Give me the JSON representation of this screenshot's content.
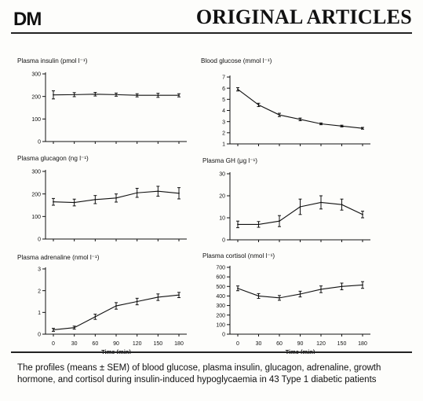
{
  "header": {
    "logo": "DM",
    "section_title": "ORIGINAL ARTICLES"
  },
  "caption": "The profiles (means ± SEM) of blood glucose, plasma insulin, glucagon, adrenaline, growth hormone, and cortisol during insulin-induced hypoglycaemia in 43 Type 1 diabetic patients",
  "chart_data": [
    {
      "type": "line",
      "title": "Plasma insulin (pmol l⁻¹)",
      "xlabel": "",
      "x": [
        0,
        30,
        60,
        90,
        120,
        150,
        180
      ],
      "ylim": [
        0,
        300
      ],
      "yticks": [
        0,
        100,
        200,
        300
      ],
      "series": [
        {
          "values": [
            207,
            208,
            210,
            208,
            205,
            205,
            205
          ],
          "sem": [
            18,
            9,
            8,
            7,
            7,
            9,
            7
          ]
        }
      ]
    },
    {
      "type": "line",
      "title": "Blood glucose (mmol l⁻¹)",
      "xlabel": "",
      "x": [
        0,
        30,
        60,
        90,
        120,
        150,
        180
      ],
      "ylim": [
        1,
        7
      ],
      "yticks": [
        1,
        2,
        3,
        4,
        5,
        6,
        7
      ],
      "series": [
        {
          "values": [
            5.9,
            4.5,
            3.6,
            3.2,
            2.8,
            2.6,
            2.4
          ],
          "sem": [
            0.15,
            0.15,
            0.15,
            0.12,
            0.08,
            0.08,
            0.08
          ]
        }
      ]
    },
    {
      "type": "line",
      "title": "Plasma glucagon (ng l⁻¹)",
      "xlabel": "",
      "x": [
        0,
        30,
        60,
        90,
        120,
        150,
        180
      ],
      "ylim": [
        0,
        300
      ],
      "yticks": [
        0,
        100,
        200,
        300
      ],
      "series": [
        {
          "values": [
            165,
            162,
            175,
            182,
            205,
            212,
            203
          ],
          "sem": [
            15,
            15,
            18,
            18,
            20,
            22,
            25
          ]
        }
      ]
    },
    {
      "type": "line",
      "title": "Plasma GH (μg l⁻¹)",
      "xlabel": "",
      "x": [
        0,
        30,
        60,
        90,
        120,
        150,
        180
      ],
      "ylim": [
        0,
        30
      ],
      "yticks": [
        0,
        10,
        20,
        30
      ],
      "series": [
        {
          "values": [
            7,
            7,
            8.5,
            15,
            17,
            16,
            11.5
          ],
          "sem": [
            1.5,
            1.3,
            2.5,
            3.5,
            3,
            2.5,
            1.5
          ]
        }
      ]
    },
    {
      "type": "line",
      "title": "Plasma adrenaline (nmol l⁻¹)",
      "xlabel": "Time (min)",
      "x": [
        0,
        30,
        60,
        90,
        120,
        150,
        180
      ],
      "xticks": [
        0,
        30,
        60,
        90,
        120,
        150,
        180
      ],
      "ylim": [
        0,
        3
      ],
      "yticks": [
        0,
        1,
        2,
        3
      ],
      "series": [
        {
          "values": [
            0.2,
            0.3,
            0.8,
            1.3,
            1.5,
            1.7,
            1.8
          ],
          "sem": [
            0.07,
            0.07,
            0.12,
            0.15,
            0.15,
            0.15,
            0.12
          ]
        }
      ]
    },
    {
      "type": "line",
      "title": "Plasma cortisol (nmol l⁻¹)",
      "xlabel": "Time (min)",
      "x": [
        0,
        30,
        60,
        90,
        120,
        150,
        180
      ],
      "xticks": [
        0,
        30,
        60,
        90,
        120,
        150,
        180
      ],
      "ylim": [
        0,
        700
      ],
      "yticks": [
        0,
        100,
        200,
        300,
        400,
        500,
        600,
        700
      ],
      "series": [
        {
          "values": [
            480,
            400,
            380,
            420,
            470,
            500,
            515
          ],
          "sem": [
            25,
            25,
            25,
            30,
            35,
            35,
            35
          ]
        }
      ]
    }
  ]
}
